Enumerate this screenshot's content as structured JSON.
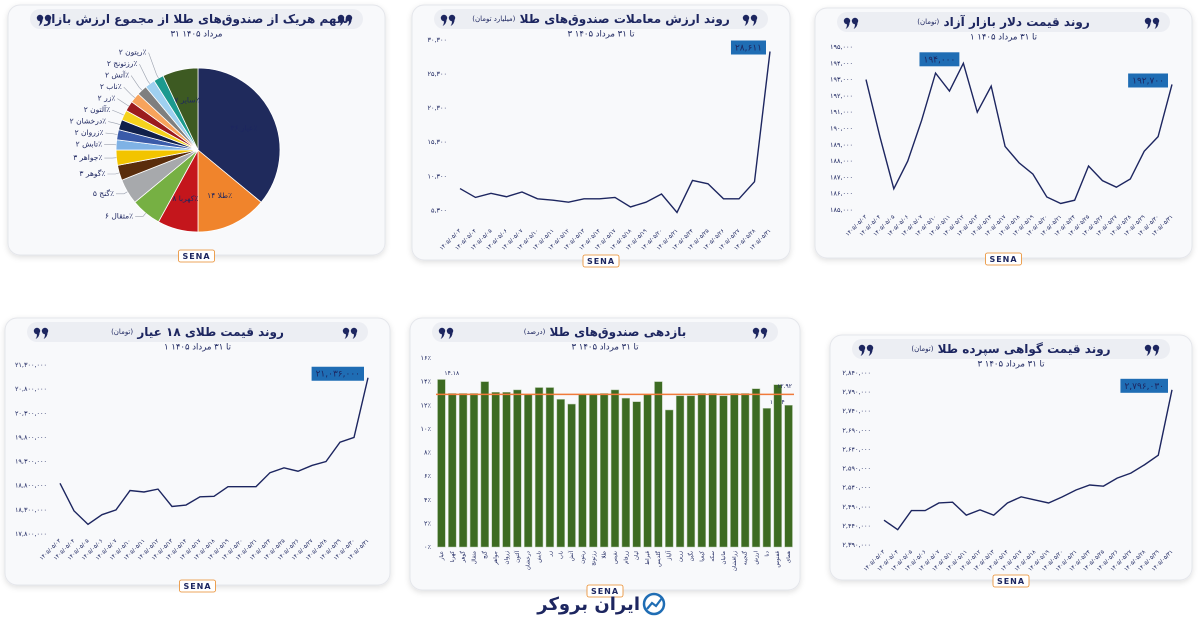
{
  "chart_data": [
    {
      "type": "pie",
      "title": "سهم هریک از صندوق‌های طلا از مجموع ارزش بازار",
      "subtitle": "۳۱ مرداد ۱۴۰۵",
      "categories": [
        "عیار",
        "طلا",
        "کهربا",
        "مثقال",
        "گنج",
        "گوهر",
        "جواهر",
        "تابش",
        "زروان",
        "درخشان",
        "آلتون",
        "زر",
        "ناب",
        "آتش",
        "رزتونج",
        "ریتون",
        "سایر"
      ],
      "values": [
        36,
        14,
        8,
        6,
        5,
        3,
        3,
        2,
        2,
        2,
        2,
        2,
        2,
        2,
        2,
        2,
        7
      ],
      "value_labels": [
        "۳۶٪",
        "۱۴٪",
        "۸٪",
        "۶٪",
        "۵٪",
        "۳٪",
        "۳٪",
        "۲٪",
        "۲٪",
        "۲٪",
        "۲٪",
        "۲٪",
        "۲٪",
        "۲٪",
        "۲٪",
        "۲٪",
        "۷٪"
      ],
      "colors": [
        "#1f2a5c",
        "#f0842c",
        "#c4161c",
        "#76b043",
        "#a7a9ac",
        "#5a2d0c",
        "#f2c400",
        "#7fb2e5",
        "#3a5ba9",
        "#10204a",
        "#f5d21c",
        "#9b1b1e",
        "#f7a35c",
        "#7f7f7f",
        "#9fd0f0",
        "#1c9a8f",
        "#3d5a22"
      ]
    },
    {
      "type": "line",
      "title": "روند ارزش معاملات صندوق‌های طلا",
      "unit": "(میلیارد تومان)",
      "subtitle": "۳ تا ۳۱ مرداد ۱۴۰۵",
      "categories": [
        "۱۴۰۵/۰۵/۰۳",
        "۱۴۰۵/۰۵/۰۴",
        "۱۴۰۵/۰۵/۰۵",
        "۱۴۰۵/۰۵/۰۶",
        "۱۴۰۵/۰۵/۰۷",
        "۱۴۰۵/۰۵/۱۰",
        "۱۴۰۵/۰۵/۱۱",
        "۱۴۰۵/۰۵/۱۲",
        "۱۴۰۵/۰۵/۱۳",
        "۱۴۰۵/۰۵/۱۴",
        "۱۴۰۵/۰۵/۱۷",
        "۱۴۰۵/۰۵/۱۸",
        "۱۴۰۵/۰۵/۱۹",
        "۱۴۰۵/۰۵/۲۰",
        "۱۴۰۵/۰۵/۲۱",
        "۱۴۰۵/۰۵/۲۴",
        "۱۴۰۵/۰۵/۲۵",
        "۱۴۰۵/۰۵/۲۶",
        "۱۴۰۵/۰۵/۲۷",
        "۱۴۰۵/۰۵/۲۸",
        "۱۴۰۵/۰۵/۳۱"
      ],
      "values": [
        8500,
        7200,
        7800,
        7300,
        8000,
        7000,
        6800,
        6500,
        7000,
        7000,
        7200,
        5800,
        6500,
        7700,
        5000,
        9700,
        9200,
        7000,
        7000,
        9500,
        28611
      ],
      "value_labels": [
        null,
        null,
        null,
        null,
        null,
        null,
        null,
        null,
        null,
        null,
        null,
        null,
        null,
        null,
        null,
        null,
        null,
        null,
        null,
        null,
        "۲۸,۶۱۱"
      ],
      "color": "#1d2660",
      "grid": false,
      "ylim": [
        3300,
        30300
      ],
      "yticks": [
        {
          "value": 5300,
          "label": "۵,۳۰۰"
        },
        {
          "value": 10300,
          "label": "۱۰,۳۰۰"
        },
        {
          "value": 15300,
          "label": "۱۵,۳۰۰"
        },
        {
          "value": 20300,
          "label": "۲۰,۳۰۰"
        },
        {
          "value": 25300,
          "label": "۲۵,۳۰۰"
        },
        {
          "value": 30300,
          "label": "۳۰,۳۰۰"
        }
      ]
    },
    {
      "type": "line",
      "title": "روند قیمت دلار بازار آزاد",
      "unit": "(تومان)",
      "subtitle": "۱ تا ۳۱ مرداد ۱۴۰۵",
      "categories": [
        "۱۴۰۵/۰۵/۰۳",
        "۱۴۰۵/۰۵/۰۴",
        "۱۴۰۵/۰۵/۰۵",
        "۱۴۰۵/۰۵/۰۶",
        "۱۴۰۵/۰۵/۰۷",
        "۱۴۰۵/۰۵/۱۰",
        "۱۴۰۵/۰۵/۱۱",
        "۱۴۰۵/۰۵/۱۲",
        "۱۴۰۵/۰۵/۱۳",
        "۱۴۰۵/۰۵/۱۴",
        "۱۴۰۵/۰۵/۱۷",
        "۱۴۰۵/۰۵/۱۸",
        "۱۴۰۵/۰۵/۱۹",
        "۱۴۰۵/۰۵/۲۰",
        "۱۴۰۵/۰۵/۲۱",
        "۱۴۰۵/۰۵/۲۴",
        "۱۴۰۵/۰۵/۲۵",
        "۱۴۰۵/۰۵/۲۶",
        "۱۴۰۵/۰۵/۲۷",
        "۱۴۰۵/۰۵/۲۸",
        "۱۴۰۵/۰۵/۲۹",
        "۱۴۰۵/۰۵/۳۰",
        "۱۴۰۵/۰۵/۳۱"
      ],
      "values": [
        193000,
        189500,
        186300,
        188000,
        190500,
        193400,
        192300,
        194000,
        191000,
        192600,
        188900,
        187900,
        187200,
        185800,
        185400,
        185600,
        187700,
        186800,
        186400,
        186900,
        188600,
        189500,
        192700
      ],
      "value_labels": [
        null,
        null,
        null,
        null,
        null,
        null,
        null,
        "۱۹۴,۰۰۰",
        null,
        null,
        null,
        null,
        null,
        null,
        null,
        null,
        null,
        null,
        null,
        null,
        null,
        null,
        "۱۹۲,۷۰۰"
      ],
      "color": "#1d2660",
      "grid": false,
      "ylim": [
        185000,
        195000
      ],
      "yticks": [
        {
          "value": 185000,
          "label": "۱۸۵,۰۰۰"
        },
        {
          "value": 186000,
          "label": "۱۸۶,۰۰۰"
        },
        {
          "value": 187000,
          "label": "۱۸۷,۰۰۰"
        },
        {
          "value": 188000,
          "label": "۱۸۸,۰۰۰"
        },
        {
          "value": 189000,
          "label": "۱۸۹,۰۰۰"
        },
        {
          "value": 190000,
          "label": "۱۹۰,۰۰۰"
        },
        {
          "value": 191000,
          "label": "۱۹۱,۰۰۰"
        },
        {
          "value": 192000,
          "label": "۱۹۲,۰۰۰"
        },
        {
          "value": 193000,
          "label": "۱۹۳,۰۰۰"
        },
        {
          "value": 194000,
          "label": "۱۹۴,۰۰۰"
        },
        {
          "value": 195000,
          "label": "۱۹۵,۰۰۰"
        }
      ]
    },
    {
      "type": "line",
      "title": "روند قیمت طلای ۱۸ عیار",
      "unit": "(تومان)",
      "subtitle": "۱ تا ۳۱ مرداد ۱۴۰۵",
      "categories": [
        "۱۴۰۵/۰۵/۰۳",
        "۱۴۰۵/۰۵/۰۴",
        "۱۴۰۵/۰۵/۰۵",
        "۱۴۰۵/۰۵/۰۶",
        "۱۴۰۵/۰۵/۰۷",
        "۱۴۰۵/۰۵/۱۰",
        "۱۴۰۵/۰۵/۱۱",
        "۱۴۰۵/۰۵/۱۲",
        "۱۴۰۵/۰۵/۱۳",
        "۱۴۰۵/۰۵/۱۴",
        "۱۴۰۵/۰۵/۱۷",
        "۱۴۰۵/۰۵/۱۸",
        "۱۴۰۵/۰۵/۱۹",
        "۱۴۰۵/۰۵/۲۰",
        "۱۴۰۵/۰۵/۲۱",
        "۱۴۰۵/۰۵/۲۴",
        "۱۴۰۵/۰۵/۲۵",
        "۱۴۰۵/۰۵/۲۶",
        "۱۴۰۵/۰۵/۲۷",
        "۱۴۰۵/۰۵/۲۸",
        "۱۴۰۵/۰۵/۲۹",
        "۱۴۰۵/۰۵/۳۰",
        "۱۴۰۵/۰۵/۳۱"
      ],
      "values": [
        18850000,
        18280000,
        18000000,
        18200000,
        18300000,
        18700000,
        18670000,
        18730000,
        18370000,
        18400000,
        18570000,
        18580000,
        18780000,
        18780000,
        18780000,
        19070000,
        19170000,
        19100000,
        19220000,
        19300000,
        19700000,
        19800000,
        21036000
      ],
      "value_labels": [
        null,
        null,
        null,
        null,
        null,
        null,
        null,
        null,
        null,
        null,
        null,
        null,
        null,
        null,
        null,
        null,
        null,
        null,
        null,
        null,
        null,
        null,
        "۲۱,۰۳۶,۰۰۰"
      ],
      "color": "#1d2660",
      "grid": false,
      "ylim": [
        17800000,
        21300000
      ],
      "yticks": [
        {
          "value": 17800000,
          "label": "۱۷,۸۰۰,۰۰۰"
        },
        {
          "value": 18300000,
          "label": "۱۸,۳۰۰,۰۰۰"
        },
        {
          "value": 18800000,
          "label": "۱۸,۸۰۰,۰۰۰"
        },
        {
          "value": 19300000,
          "label": "۱۹,۳۰۰,۰۰۰"
        },
        {
          "value": 19800000,
          "label": "۱۹,۸۰۰,۰۰۰"
        },
        {
          "value": 20300000,
          "label": "۲۰,۳۰۰,۰۰۰"
        },
        {
          "value": 20800000,
          "label": "۲۰,۸۰۰,۰۰۰"
        },
        {
          "value": 21300000,
          "label": "۲۱,۳۰۰,۰۰۰"
        }
      ]
    },
    {
      "type": "bar",
      "title": "بازدهی صندوق‌های طلا",
      "unit": "(درصد)",
      "subtitle": "۳ تا ۳۱ مرداد ۱۴۰۵",
      "categories": [
        "عیار",
        "کهربا",
        "گوهر",
        "مثقال",
        "گنج",
        "جواهر",
        "زروان",
        "آلتون",
        "درخشان",
        "تابش",
        "زر",
        "ناب",
        "آتش",
        "ریتون",
        "رزتونج",
        "طلا",
        "نفیس",
        "زرفام",
        "لیان",
        "قیراط",
        "گلدیس",
        "آلیاژ",
        "زرین",
        "نگین",
        "کیمیا",
        "سکه",
        "مانیان",
        "زرافشان",
        "گنجینه",
        "ارزش",
        "دنا",
        "ققنوس",
        "همای"
      ],
      "values": [
        14.18,
        13,
        13,
        13,
        14,
        13.1,
        13.1,
        13.3,
        12.9,
        13.5,
        13.5,
        12.5,
        12.1,
        12.9,
        12.9,
        13,
        13.3,
        12.6,
        12.3,
        12.9,
        14,
        11.6,
        12.8,
        12.8,
        13,
        13,
        12.8,
        13,
        13,
        13.4,
        11.74,
        13.74,
        12
      ],
      "value_labels": [
        "۱۴.۱۸",
        null,
        null,
        null,
        null,
        null,
        null,
        null,
        null,
        null,
        null,
        null,
        null,
        null,
        null,
        null,
        null,
        null,
        null,
        null,
        null,
        null,
        null,
        null,
        null,
        null,
        null,
        null,
        null,
        null,
        "۱۱.۷۴",
        null,
        null
      ],
      "color": "#3d6b22",
      "average_line": {
        "value": 12.92,
        "label": "۱۲.۹۲",
        "color": "#f07a3a"
      },
      "ylim": [
        0,
        16
      ],
      "yticks": [
        {
          "value": 0,
          "label": "۰٪"
        },
        {
          "value": 2,
          "label": "۲٪"
        },
        {
          "value": 4,
          "label": "۴٪"
        },
        {
          "value": 6,
          "label": "۶٪"
        },
        {
          "value": 8,
          "label": "۸٪"
        },
        {
          "value": 10,
          "label": "۱۰٪"
        },
        {
          "value": 12,
          "label": "۱۲٪"
        },
        {
          "value": 14,
          "label": "۱۴٪"
        },
        {
          "value": 16,
          "label": "۱۶٪"
        }
      ]
    },
    {
      "type": "line",
      "title": "روند قیمت گواهی سپرده طلا",
      "unit": "(تومان)",
      "subtitle": "۳ تا ۳۱ مرداد ۱۴۰۵",
      "categories": [
        "۱۴۰۵/۰۵/۰۳",
        "۱۴۰۵/۰۵/۰۴",
        "۱۴۰۵/۰۵/۰۵",
        "۱۴۰۵/۰۵/۰۶",
        "۱۴۰۵/۰۵/۰۷",
        "۱۴۰۵/۰۵/۱۰",
        "۱۴۰۵/۰۵/۱۱",
        "۱۴۰۵/۰۵/۱۲",
        "۱۴۰۵/۰۵/۱۳",
        "۱۴۰۵/۰۵/۱۴",
        "۱۴۰۵/۰۵/۱۷",
        "۱۴۰۵/۰۵/۱۸",
        "۱۴۰۵/۰۵/۱۹",
        "۱۴۰۵/۰۵/۲۰",
        "۱۴۰۵/۰۵/۲۱",
        "۱۴۰۵/۰۵/۲۴",
        "۱۴۰۵/۰۵/۲۵",
        "۱۴۰۵/۰۵/۲۶",
        "۱۴۰۵/۰۵/۲۷",
        "۱۴۰۵/۰۵/۲۸",
        "۱۴۰۵/۰۵/۲۹",
        "۱۴۰۵/۰۵/۳۱"
      ],
      "values": [
        2455000,
        2430000,
        2480000,
        2480000,
        2500000,
        2502000,
        2468000,
        2482000,
        2468000,
        2500000,
        2516000,
        2508000,
        2500000,
        2516000,
        2534000,
        2547000,
        2544000,
        2565000,
        2578000,
        2600000,
        2625000,
        2796030
      ],
      "value_labels": [
        null,
        null,
        null,
        null,
        null,
        null,
        null,
        null,
        null,
        null,
        null,
        null,
        null,
        null,
        null,
        null,
        null,
        null,
        null,
        null,
        null,
        "۲,۷۹۶,۰۳۰"
      ],
      "color": "#1d2660",
      "grid": false,
      "ylim": [
        2390000,
        2840000
      ],
      "yticks": [
        {
          "value": 2390000,
          "label": "۲,۳۹۰,۰۰۰"
        },
        {
          "value": 2440000,
          "label": "۲,۴۴۰,۰۰۰"
        },
        {
          "value": 2490000,
          "label": "۲,۴۹۰,۰۰۰"
        },
        {
          "value": 2540000,
          "label": "۲,۵۴۰,۰۰۰"
        },
        {
          "value": 2590000,
          "label": "۲,۵۹۰,۰۰۰"
        },
        {
          "value": 2640000,
          "label": "۲,۶۴۰,۰۰۰"
        },
        {
          "value": 2690000,
          "label": "۲,۶۹۰,۰۰۰"
        },
        {
          "value": 2740000,
          "label": "۲,۷۴۰,۰۰۰"
        },
        {
          "value": 2790000,
          "label": "۲,۷۹۰,۰۰۰"
        },
        {
          "value": 2840000,
          "label": "۲,۸۴۰,۰۰۰"
        }
      ]
    }
  ],
  "branding": {
    "sena": "SENA",
    "footer": "ایران بروکر"
  }
}
